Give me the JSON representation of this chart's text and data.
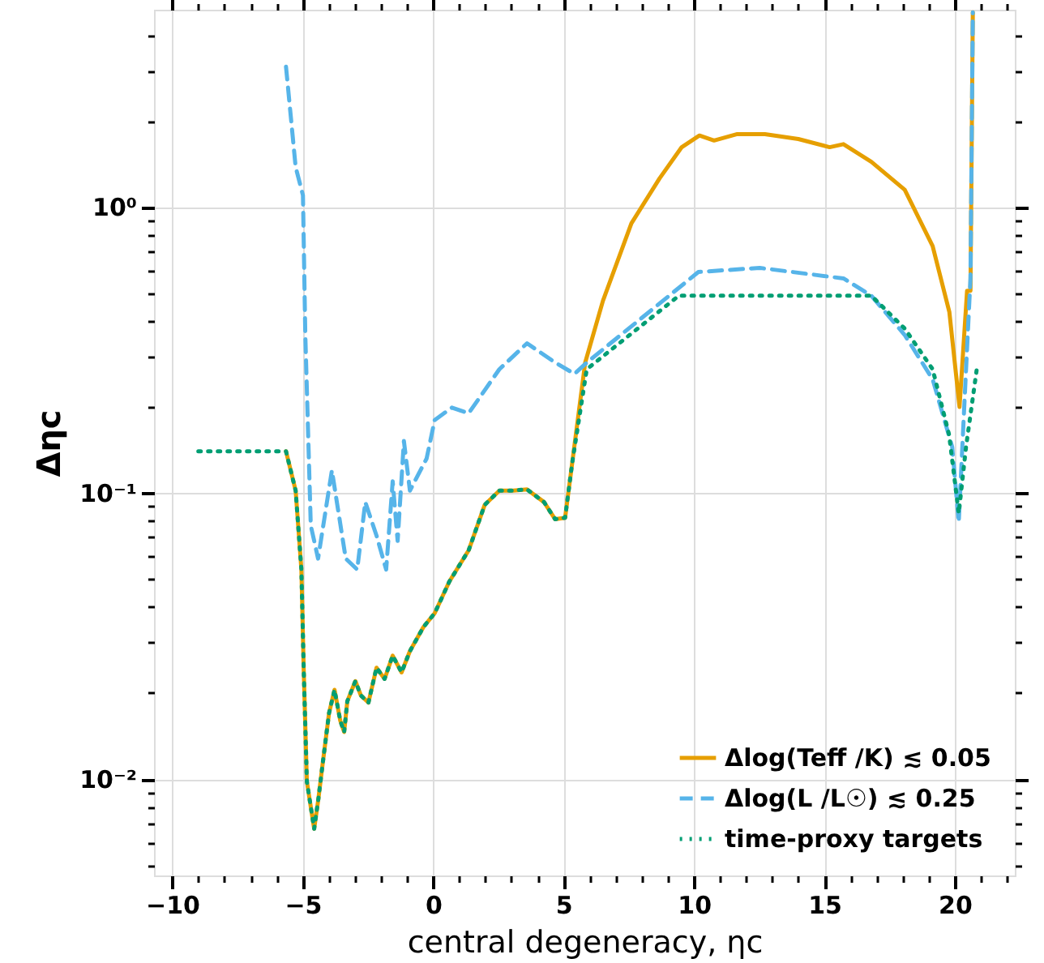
{
  "chart_data": {
    "type": "line",
    "xlabel": "central degeneracy, ηc",
    "ylabel": "Δηc",
    "xlim": [
      -10.7,
      22.3
    ],
    "ylim": [
      0.0046,
      4.9
    ],
    "log": "y",
    "grid": true,
    "legend": "bottom right",
    "marker": "none",
    "xticks": [
      {
        "value": -10,
        "label": "−10"
      },
      {
        "value": -9,
        "label": null
      },
      {
        "value": -8,
        "label": null
      },
      {
        "value": -7,
        "label": null
      },
      {
        "value": -6,
        "label": null
      },
      {
        "value": -5,
        "label": "−5"
      },
      {
        "value": -4,
        "label": null
      },
      {
        "value": -3,
        "label": null
      },
      {
        "value": -2,
        "label": null
      },
      {
        "value": -1,
        "label": null
      },
      0,
      {
        "value": 1,
        "label": null
      },
      {
        "value": 2,
        "label": null
      },
      {
        "value": 3,
        "label": null
      },
      {
        "value": 4,
        "label": null
      },
      5,
      {
        "value": 6,
        "label": null
      },
      {
        "value": 7,
        "label": null
      },
      {
        "value": 8,
        "label": null
      },
      {
        "value": 9,
        "label": null
      },
      10,
      {
        "value": 11,
        "label": null
      },
      {
        "value": 12,
        "label": null
      },
      {
        "value": 13,
        "label": null
      },
      {
        "value": 14,
        "label": null
      },
      15,
      {
        "value": 16,
        "label": null
      },
      {
        "value": 17,
        "label": null
      },
      {
        "value": 18,
        "label": null
      },
      {
        "value": 19,
        "label": null
      },
      20,
      {
        "value": 21,
        "label": null
      },
      {
        "value": 22,
        "label": null
      }
    ],
    "yticks": [
      {
        "value": 0.005,
        "label": null
      },
      {
        "value": 0.006,
        "label": null
      },
      {
        "value": 0.007,
        "label": null
      },
      {
        "value": 0.008,
        "label": null
      },
      {
        "value": 0.009,
        "label": null
      },
      {
        "value": 0.01,
        "label": "10⁻²"
      },
      {
        "value": 0.02,
        "label": null
      },
      {
        "value": 0.03,
        "label": null
      },
      {
        "value": 0.04,
        "label": null
      },
      {
        "value": 0.05,
        "label": null
      },
      {
        "value": 0.06,
        "label": null
      },
      {
        "value": 0.07,
        "label": null
      },
      {
        "value": 0.08,
        "label": null
      },
      {
        "value": 0.09,
        "label": null
      },
      {
        "value": 0.1,
        "label": "10⁻¹"
      },
      {
        "value": 0.2,
        "label": null
      },
      {
        "value": 0.3,
        "label": null
      },
      {
        "value": 0.4,
        "label": null
      },
      {
        "value": 0.5,
        "label": null
      },
      {
        "value": 0.6,
        "label": null
      },
      {
        "value": 0.7,
        "label": null
      },
      {
        "value": 0.8,
        "label": null
      },
      {
        "value": 0.9,
        "label": null
      },
      {
        "value": 1,
        "label": "10⁰"
      },
      {
        "value": 2,
        "label": null
      },
      {
        "value": 3,
        "label": null
      },
      {
        "value": 4,
        "label": null
      }
    ],
    "series": [
      {
        "name": "Δlog(Teff /K) ≲ 0.05",
        "color": "#e69f00",
        "line_style": "solid",
        "x": [
          -5.64,
          -5.27,
          -5.05,
          -4.96,
          -4.84,
          -4.56,
          -4.4,
          -4.24,
          -3.99,
          -3.78,
          -3.56,
          -3.41,
          -3.29,
          -2.98,
          -2.77,
          -2.48,
          -2.17,
          -1.86,
          -1.55,
          -1.21,
          -0.89,
          -0.37,
          0.06,
          0.62,
          1.36,
          1.98,
          2.54,
          3.07,
          3.6,
          4.25,
          4.68,
          5.06,
          5.33,
          5.83,
          6.51,
          7.6,
          8.68,
          9.53,
          10.21,
          10.77,
          11.66,
          12.72,
          14.0,
          15.2,
          15.73,
          16.8,
          18.08,
          19.15,
          19.79,
          20.18,
          20.47,
          20.6,
          20.69
        ],
        "values": [
          0.14,
          0.102,
          0.054,
          0.024,
          0.0098,
          0.0067,
          0.0085,
          0.0112,
          0.017,
          0.0205,
          0.016,
          0.0146,
          0.0187,
          0.022,
          0.0196,
          0.0185,
          0.0245,
          0.0224,
          0.027,
          0.0236,
          0.028,
          0.034,
          0.038,
          0.049,
          0.063,
          0.091,
          0.102,
          0.102,
          0.103,
          0.093,
          0.081,
          0.082,
          0.127,
          0.286,
          0.47,
          0.877,
          1.26,
          1.62,
          1.78,
          1.71,
          1.8,
          1.8,
          1.73,
          1.62,
          1.66,
          1.44,
          1.15,
          0.73,
          0.43,
          0.2,
          0.51,
          0.51,
          4.8
        ]
      },
      {
        "name": "Δlog(L /L☉) ≲ 0.25",
        "color": "#56b4e9",
        "line_style": "dashed",
        "x": [
          -5.64,
          -5.27,
          -4.99,
          -4.9,
          -4.69,
          -4.41,
          -3.88,
          -3.35,
          -2.91,
          -2.6,
          -2.17,
          -1.8,
          -1.55,
          -1.36,
          -1.12,
          -0.89,
          -0.25,
          0.06,
          0.72,
          1.36,
          2.54,
          3.6,
          4.68,
          5.42,
          5.89,
          10.17,
          12.52,
          15.73,
          16.8,
          18.08,
          19.15,
          19.9,
          20.15,
          20.43,
          20.6,
          20.69
        ],
        "values": [
          3.1,
          1.38,
          1.1,
          0.357,
          0.077,
          0.059,
          0.12,
          0.059,
          0.054,
          0.093,
          0.071,
          0.054,
          0.11,
          0.068,
          0.152,
          0.102,
          0.132,
          0.18,
          0.199,
          0.19,
          0.271,
          0.334,
          0.286,
          0.261,
          0.286,
          0.593,
          0.613,
          0.563,
          0.49,
          0.357,
          0.25,
          0.145,
          0.079,
          0.271,
          0.563,
          4.8
        ]
      },
      {
        "name": "time-proxy targets",
        "color": "#009e73",
        "line_style": "dotted",
        "x": [
          -9.0,
          -5.64,
          -5.27,
          -5.05,
          -4.96,
          -4.84,
          -4.56,
          -4.4,
          -4.24,
          -3.99,
          -3.78,
          -3.56,
          -3.41,
          -3.29,
          -2.98,
          -2.77,
          -2.48,
          -2.17,
          -1.86,
          -1.55,
          -1.21,
          -0.89,
          -0.37,
          0.06,
          0.62,
          1.36,
          1.98,
          2.54,
          3.07,
          3.6,
          4.25,
          4.68,
          5.06,
          5.33,
          5.89,
          9.42,
          16.8,
          18.08,
          19.15,
          19.78,
          20.15,
          20.43,
          20.86
        ],
        "values": [
          0.14,
          0.14,
          0.102,
          0.054,
          0.024,
          0.0098,
          0.0067,
          0.0085,
          0.0112,
          0.017,
          0.0205,
          0.016,
          0.0146,
          0.0187,
          0.022,
          0.0196,
          0.0185,
          0.0245,
          0.0224,
          0.027,
          0.0236,
          0.028,
          0.034,
          0.038,
          0.049,
          0.063,
          0.091,
          0.102,
          0.102,
          0.103,
          0.093,
          0.081,
          0.082,
          0.127,
          0.271,
          0.49,
          0.49,
          0.376,
          0.271,
          0.16,
          0.085,
          0.145,
          0.279
        ]
      }
    ]
  }
}
